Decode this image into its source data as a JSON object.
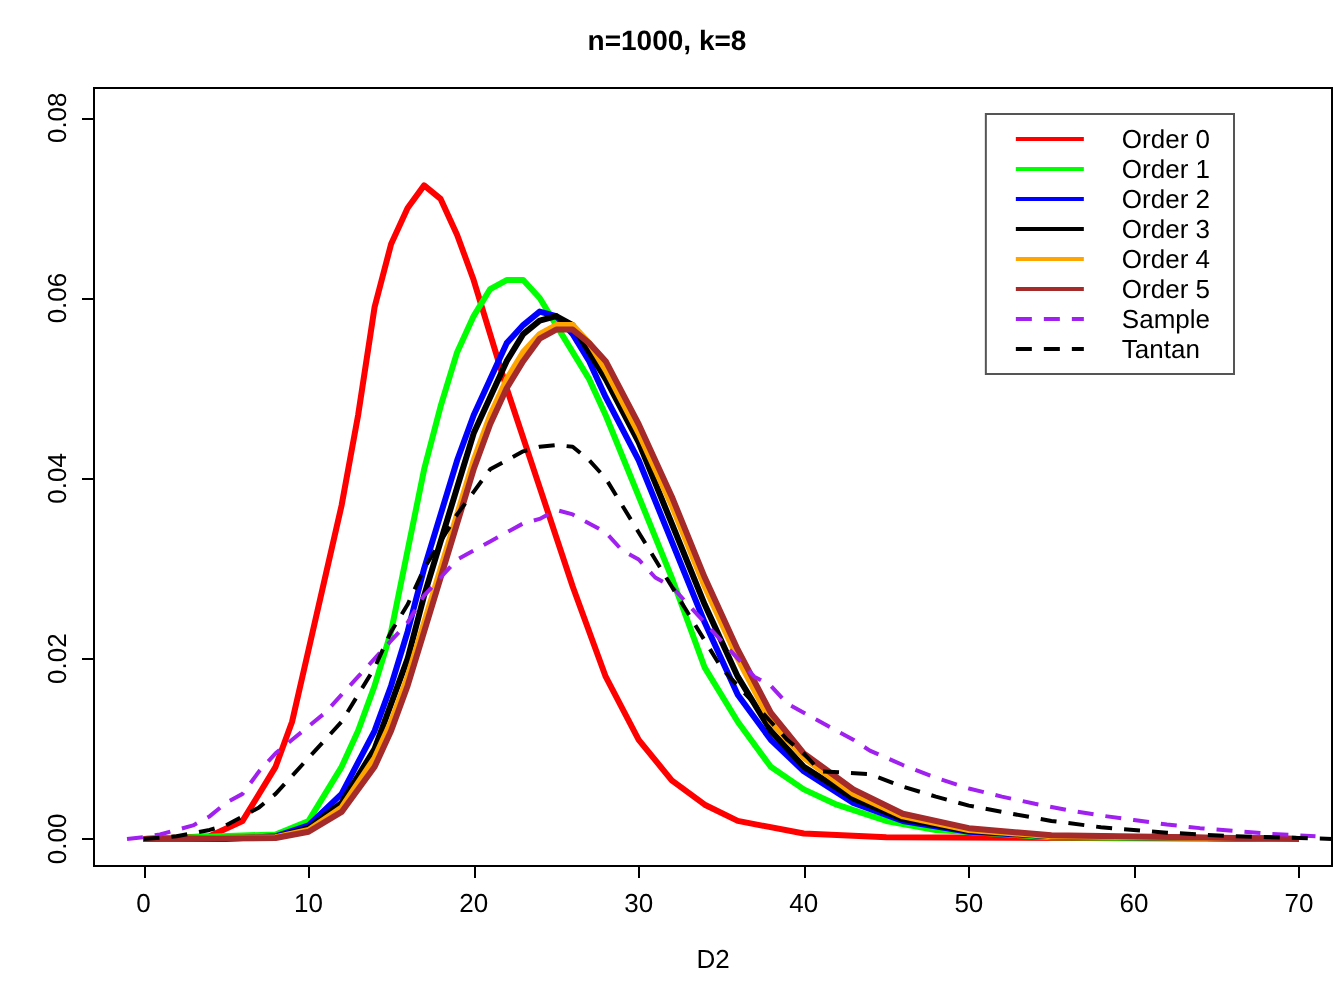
{
  "chart_data": {
    "type": "line",
    "title": "n=1000, k=8",
    "xlabel": "D2",
    "xlim": [
      -3,
      72
    ],
    "ylim": [
      -0.003,
      0.0833
    ],
    "xticks": [
      0,
      10,
      20,
      30,
      40,
      50,
      60,
      70
    ],
    "yticks": [
      {
        "value": 0,
        "label": "0.00"
      },
      {
        "value": 0.02,
        "label": "0.02"
      },
      {
        "value": 0.04,
        "label": "0.04"
      },
      {
        "value": 0.06,
        "label": "0.06"
      },
      {
        "value": 0.08,
        "label": "0.08"
      }
    ],
    "grid": false,
    "legend": "top right",
    "marker": "none",
    "series": [
      {
        "name": "Order 0",
        "color": "#ff0000",
        "line_style": "solid",
        "x": [
          0,
          4,
          6,
          8,
          9,
          10,
          11,
          12,
          13,
          14,
          15,
          16,
          17,
          18,
          19,
          20,
          21,
          22,
          24,
          26,
          28,
          30,
          32,
          34,
          36,
          40,
          45,
          70
        ],
        "values": [
          0,
          0.0003,
          0.002,
          0.008,
          0.013,
          0.021,
          0.029,
          0.037,
          0.047,
          0.059,
          0.066,
          0.07,
          0.0725,
          0.071,
          0.067,
          0.062,
          0.056,
          0.05,
          0.039,
          0.028,
          0.018,
          0.011,
          0.0065,
          0.0038,
          0.002,
          0.0006,
          0.0002,
          0
        ]
      },
      {
        "name": "Order 1",
        "color": "#00ff00",
        "line_style": "solid",
        "x": [
          0,
          8,
          10,
          12,
          13,
          14,
          15,
          16,
          17,
          18,
          19,
          20,
          21,
          22,
          23,
          24,
          25,
          26,
          27,
          28,
          30,
          32,
          34,
          36,
          38,
          40,
          42,
          45,
          48,
          55,
          70
        ],
        "values": [
          0,
          0.0005,
          0.002,
          0.008,
          0.012,
          0.017,
          0.023,
          0.032,
          0.041,
          0.048,
          0.054,
          0.058,
          0.061,
          0.062,
          0.062,
          0.06,
          0.057,
          0.054,
          0.051,
          0.047,
          0.038,
          0.029,
          0.019,
          0.013,
          0.008,
          0.0055,
          0.0038,
          0.002,
          0.001,
          0.0002,
          0
        ]
      },
      {
        "name": "Order 2",
        "color": "#0000ff",
        "line_style": "solid",
        "x": [
          0,
          5,
          8,
          10,
          12,
          14,
          15,
          16,
          17,
          18,
          19,
          20,
          21,
          22,
          23,
          24,
          25,
          26,
          27,
          28,
          30,
          32,
          34,
          36,
          38,
          40,
          43,
          46,
          50,
          55,
          70
        ],
        "values": [
          0,
          0,
          0.0003,
          0.0015,
          0.005,
          0.012,
          0.017,
          0.023,
          0.03,
          0.036,
          0.042,
          0.047,
          0.051,
          0.055,
          0.057,
          0.0585,
          0.058,
          0.056,
          0.053,
          0.049,
          0.042,
          0.033,
          0.024,
          0.016,
          0.011,
          0.0075,
          0.004,
          0.002,
          0.0008,
          0.0003,
          0
        ]
      },
      {
        "name": "Order 3",
        "color": "#000000",
        "line_style": "solid",
        "x": [
          0,
          8,
          10,
          12,
          14,
          15,
          16,
          17,
          18,
          19,
          20,
          21,
          22,
          23,
          24,
          25,
          26,
          27,
          28,
          30,
          32,
          34,
          36,
          38,
          40,
          43,
          46,
          50,
          55,
          70
        ],
        "values": [
          0,
          0.0002,
          0.0012,
          0.004,
          0.01,
          0.015,
          0.02,
          0.027,
          0.033,
          0.039,
          0.045,
          0.049,
          0.053,
          0.056,
          0.0575,
          0.058,
          0.057,
          0.054,
          0.051,
          0.044,
          0.035,
          0.026,
          0.018,
          0.012,
          0.008,
          0.0045,
          0.0022,
          0.0009,
          0.0003,
          0
        ]
      },
      {
        "name": "Order 4",
        "color": "#ffa500",
        "line_style": "solid",
        "x": [
          0,
          8,
          10,
          12,
          14,
          15,
          16,
          17,
          18,
          19,
          20,
          21,
          22,
          23,
          24,
          25,
          26,
          27,
          28,
          30,
          32,
          34,
          36,
          38,
          40,
          43,
          46,
          50,
          55,
          70
        ],
        "values": [
          0,
          0.0002,
          0.001,
          0.0035,
          0.009,
          0.013,
          0.018,
          0.024,
          0.03,
          0.036,
          0.042,
          0.047,
          0.051,
          0.054,
          0.056,
          0.057,
          0.057,
          0.055,
          0.052,
          0.045,
          0.037,
          0.028,
          0.02,
          0.013,
          0.009,
          0.005,
          0.0025,
          0.001,
          0.0003,
          0
        ]
      },
      {
        "name": "Order 5",
        "color": "#a52a2a",
        "line_style": "solid",
        "x": [
          0,
          8,
          10,
          12,
          14,
          15,
          16,
          17,
          18,
          19,
          20,
          21,
          22,
          23,
          24,
          25,
          26,
          27,
          28,
          30,
          32,
          34,
          36,
          38,
          40,
          43,
          46,
          50,
          55,
          70
        ],
        "values": [
          0,
          0.0001,
          0.0008,
          0.003,
          0.008,
          0.012,
          0.017,
          0.023,
          0.029,
          0.035,
          0.041,
          0.046,
          0.05,
          0.053,
          0.0555,
          0.0565,
          0.0565,
          0.055,
          0.053,
          0.046,
          0.038,
          0.029,
          0.021,
          0.014,
          0.0095,
          0.0055,
          0.0028,
          0.0012,
          0.0004,
          0
        ]
      },
      {
        "name": "Sample",
        "color": "#a020f0",
        "line_style": "dashed",
        "x": [
          -1,
          0,
          1,
          2,
          3,
          4,
          5,
          6,
          7,
          8,
          9,
          10,
          11,
          12,
          13,
          14,
          15,
          16,
          17,
          18,
          19,
          20,
          21,
          22,
          23,
          24,
          25,
          26,
          27,
          28,
          29,
          30,
          31,
          32,
          33,
          34,
          35,
          36,
          37,
          38,
          39,
          40,
          41,
          42,
          43,
          44,
          45,
          46,
          47,
          48,
          49,
          50,
          52,
          54,
          56,
          58,
          60,
          62,
          64,
          66,
          68,
          70,
          71
        ],
        "values": [
          0,
          0.0002,
          0.0005,
          0.001,
          0.0015,
          0.0025,
          0.004,
          0.005,
          0.0075,
          0.0095,
          0.011,
          0.0125,
          0.014,
          0.016,
          0.018,
          0.02,
          0.022,
          0.024,
          0.027,
          0.029,
          0.031,
          0.032,
          0.033,
          0.034,
          0.035,
          0.0355,
          0.0365,
          0.036,
          0.035,
          0.034,
          0.032,
          0.031,
          0.029,
          0.028,
          0.026,
          0.024,
          0.022,
          0.02,
          0.018,
          0.017,
          0.015,
          0.014,
          0.013,
          0.012,
          0.011,
          0.0098,
          0.009,
          0.0082,
          0.0075,
          0.0068,
          0.0062,
          0.0056,
          0.0047,
          0.0039,
          0.0032,
          0.0026,
          0.0021,
          0.0016,
          0.0012,
          0.0009,
          0.0006,
          0.0004,
          0.0003
        ]
      },
      {
        "name": "Tantan",
        "color": "#000000",
        "line_style": "dashed",
        "x": [
          0,
          2,
          4,
          5,
          6,
          7,
          8,
          9,
          10,
          11,
          12,
          13,
          14,
          15,
          16,
          17,
          18,
          19,
          20,
          21,
          22,
          23,
          24,
          25,
          26,
          27,
          28,
          29,
          30,
          31,
          32,
          33,
          34,
          35,
          36,
          37,
          38,
          39,
          40,
          41,
          44,
          46,
          48,
          50,
          52,
          55,
          58,
          62,
          66,
          70,
          72
        ],
        "values": [
          0,
          0.0003,
          0.001,
          0.0015,
          0.0025,
          0.0035,
          0.005,
          0.007,
          0.009,
          0.011,
          0.013,
          0.016,
          0.019,
          0.023,
          0.026,
          0.03,
          0.033,
          0.036,
          0.0385,
          0.041,
          0.042,
          0.043,
          0.0435,
          0.0437,
          0.0435,
          0.042,
          0.04,
          0.037,
          0.034,
          0.031,
          0.028,
          0.025,
          0.022,
          0.019,
          0.017,
          0.015,
          0.013,
          0.011,
          0.0095,
          0.0075,
          0.0072,
          0.0058,
          0.0047,
          0.0037,
          0.003,
          0.002,
          0.0013,
          0.0007,
          0.0003,
          0.0001,
          0
        ]
      }
    ]
  }
}
